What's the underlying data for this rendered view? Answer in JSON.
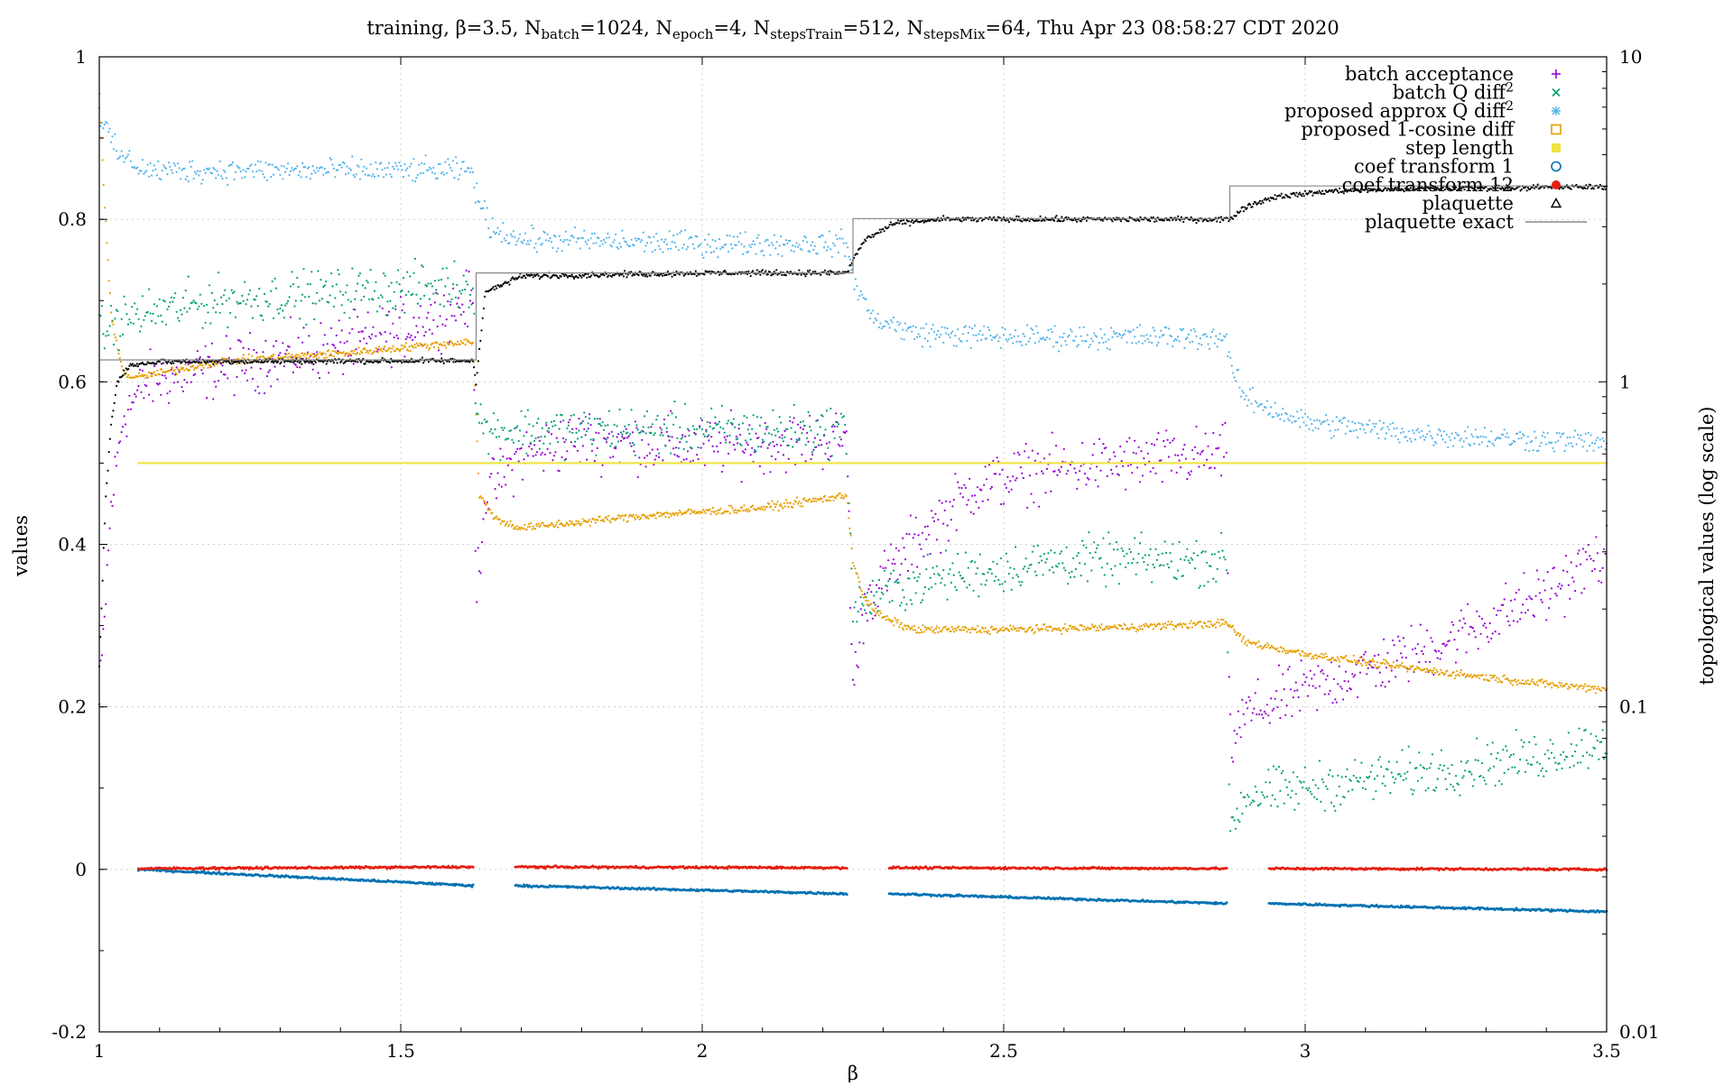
{
  "chart_data": {
    "type": "scatter",
    "title": {
      "segments": [
        {
          "t": "training, β=3.5, N"
        },
        {
          "t": "batch",
          "sub": true
        },
        {
          "t": "=1024, N"
        },
        {
          "t": "epoch",
          "sub": true
        },
        {
          "t": "=4, N"
        },
        {
          "t": "stepsTrain",
          "sub": true
        },
        {
          "t": "=512, N"
        },
        {
          "t": "stepsMix",
          "sub": true
        },
        {
          "t": "=64, Thu Apr 23 08:58:27 CDT 2020"
        }
      ]
    },
    "xlabel": "β",
    "ylabel": "values",
    "y2label": "topological values (log scale)",
    "xlim": [
      1,
      3.5
    ],
    "ylim": [
      -0.2,
      1
    ],
    "y2lim": [
      0.01,
      10
    ],
    "y2scale": "log",
    "grid": true,
    "legend_position": "top-right",
    "x_ticks": [
      "1",
      "1.5",
      "2",
      "2.5",
      "3",
      "3.5"
    ],
    "y_ticks": [
      "-0.2",
      "0",
      "0.2",
      "0.4",
      "0.6",
      "0.8",
      "1"
    ],
    "y2_ticks": [
      "0.01",
      "0.1",
      "1",
      "10"
    ],
    "series": [
      {
        "name": "batch acceptance",
        "sup": "",
        "marker": "plus",
        "color": "#9400d3",
        "axis": "y",
        "spread": 0.022,
        "points": [
          [
            1.0,
            0.2
          ],
          [
            1.02,
            0.45
          ],
          [
            1.04,
            0.56
          ],
          [
            1.08,
            0.6
          ],
          [
            1.15,
            0.61
          ],
          [
            1.3,
            0.63
          ],
          [
            1.45,
            0.65
          ],
          [
            1.62,
            0.7
          ],
          [
            1.625,
            0.34
          ],
          [
            1.64,
            0.46
          ],
          [
            1.7,
            0.51
          ],
          [
            1.8,
            0.53
          ],
          [
            2.0,
            0.52
          ],
          [
            2.24,
            0.53
          ],
          [
            2.25,
            0.22
          ],
          [
            2.27,
            0.33
          ],
          [
            2.35,
            0.4
          ],
          [
            2.45,
            0.47
          ],
          [
            2.55,
            0.49
          ],
          [
            2.7,
            0.5
          ],
          [
            2.87,
            0.51
          ],
          [
            2.875,
            0.15
          ],
          [
            2.9,
            0.19
          ],
          [
            3.0,
            0.22
          ],
          [
            3.2,
            0.27
          ],
          [
            3.4,
            0.34
          ],
          [
            3.5,
            0.39
          ]
        ]
      },
      {
        "name": "batch Q diff",
        "sup": "2",
        "marker": "cross",
        "color": "#009e73",
        "axis": "y",
        "spread": 0.018,
        "points": [
          [
            1.0,
            0.66
          ],
          [
            1.05,
            0.68
          ],
          [
            1.2,
            0.7
          ],
          [
            1.4,
            0.71
          ],
          [
            1.62,
            0.72
          ],
          [
            1.625,
            0.57
          ],
          [
            1.64,
            0.54
          ],
          [
            1.8,
            0.54
          ],
          [
            2.0,
            0.54
          ],
          [
            2.24,
            0.54
          ],
          [
            2.25,
            0.32
          ],
          [
            2.3,
            0.34
          ],
          [
            2.4,
            0.36
          ],
          [
            2.6,
            0.38
          ],
          [
            2.87,
            0.38
          ],
          [
            2.875,
            0.05
          ],
          [
            2.9,
            0.09
          ],
          [
            3.0,
            0.1
          ],
          [
            3.2,
            0.12
          ],
          [
            3.4,
            0.14
          ],
          [
            3.5,
            0.16
          ]
        ]
      },
      {
        "name": "proposed approx Q diff",
        "sup": "2",
        "marker": "star",
        "color": "#56b4e9",
        "axis": "y",
        "spread": 0.009,
        "points": [
          [
            1.0,
            0.93
          ],
          [
            1.03,
            0.88
          ],
          [
            1.08,
            0.86
          ],
          [
            1.3,
            0.86
          ],
          [
            1.62,
            0.86
          ],
          [
            1.625,
            0.83
          ],
          [
            1.65,
            0.79
          ],
          [
            1.7,
            0.775
          ],
          [
            2.0,
            0.77
          ],
          [
            2.24,
            0.77
          ],
          [
            2.25,
            0.73
          ],
          [
            2.28,
            0.68
          ],
          [
            2.35,
            0.66
          ],
          [
            2.5,
            0.655
          ],
          [
            2.87,
            0.655
          ],
          [
            2.875,
            0.62
          ],
          [
            2.9,
            0.58
          ],
          [
            3.0,
            0.55
          ],
          [
            3.2,
            0.535
          ],
          [
            3.5,
            0.525
          ]
        ]
      },
      {
        "name": "proposed 1-cosine diff",
        "sup": "",
        "marker": "square",
        "color": "#e69f00",
        "axis": "y",
        "spread": 0.003,
        "points": [
          [
            1.0,
            0.95
          ],
          [
            1.01,
            0.8
          ],
          [
            1.02,
            0.68
          ],
          [
            1.04,
            0.61
          ],
          [
            1.06,
            0.605
          ],
          [
            1.2,
            0.625
          ],
          [
            1.4,
            0.635
          ],
          [
            1.62,
            0.65
          ],
          [
            1.625,
            0.56
          ],
          [
            1.63,
            0.46
          ],
          [
            1.66,
            0.43
          ],
          [
            1.7,
            0.42
          ],
          [
            1.9,
            0.435
          ],
          [
            2.1,
            0.445
          ],
          [
            2.24,
            0.46
          ],
          [
            2.25,
            0.38
          ],
          [
            2.27,
            0.33
          ],
          [
            2.3,
            0.31
          ],
          [
            2.35,
            0.295
          ],
          [
            2.5,
            0.295
          ],
          [
            2.7,
            0.298
          ],
          [
            2.87,
            0.303
          ],
          [
            2.875,
            0.3
          ],
          [
            2.9,
            0.28
          ],
          [
            3.0,
            0.265
          ],
          [
            3.2,
            0.245
          ],
          [
            3.4,
            0.228
          ],
          [
            3.5,
            0.222
          ]
        ]
      },
      {
        "name": "step length",
        "sup": "",
        "marker": "filled-square",
        "color": "#f0e442",
        "axis": "y",
        "spread": 0,
        "points": [
          [
            1.065,
            0.5
          ],
          [
            3.5,
            0.5
          ]
        ]
      },
      {
        "name": "coef transform 1",
        "sup": "",
        "marker": "circle",
        "color": "#0072b2",
        "axis": "y",
        "spread": 0.0008,
        "points": [
          [
            1.065,
            0.0
          ],
          [
            1.62,
            -0.02
          ],
          [
            null,
            null
          ],
          [
            1.69,
            -0.02
          ],
          [
            2.24,
            -0.03
          ],
          [
            null,
            null
          ],
          [
            2.31,
            -0.03
          ],
          [
            2.87,
            -0.042
          ],
          [
            null,
            null
          ],
          [
            2.94,
            -0.042
          ],
          [
            3.5,
            -0.052
          ]
        ]
      },
      {
        "name": "coef transform 12",
        "sup": "",
        "marker": "filled-circle",
        "color": "#e51e10",
        "axis": "y",
        "spread": 0.0008,
        "points": [
          [
            1.065,
            0.001
          ],
          [
            1.62,
            0.003
          ],
          [
            null,
            null
          ],
          [
            1.69,
            0.003
          ],
          [
            2.24,
            0.002
          ],
          [
            null,
            null
          ],
          [
            2.31,
            0.002
          ],
          [
            2.87,
            0.001
          ],
          [
            null,
            null
          ],
          [
            2.94,
            0.001
          ],
          [
            3.5,
            0.0
          ]
        ]
      },
      {
        "name": "plaquette",
        "sup": "",
        "marker": "triangle",
        "color": "#000000",
        "axis": "y",
        "spread": 0.002,
        "points": [
          [
            1.0,
            0.25
          ],
          [
            1.01,
            0.45
          ],
          [
            1.02,
            0.55
          ],
          [
            1.03,
            0.6
          ],
          [
            1.05,
            0.62
          ],
          [
            1.1,
            0.625
          ],
          [
            1.62,
            0.626
          ],
          [
            1.625,
            0.6
          ],
          [
            1.64,
            0.71
          ],
          [
            1.7,
            0.73
          ],
          [
            2.0,
            0.734
          ],
          [
            2.24,
            0.734
          ],
          [
            2.25,
            0.75
          ],
          [
            2.27,
            0.775
          ],
          [
            2.32,
            0.795
          ],
          [
            2.4,
            0.8
          ],
          [
            2.87,
            0.8
          ],
          [
            2.875,
            0.8
          ],
          [
            2.9,
            0.815
          ],
          [
            2.95,
            0.828
          ],
          [
            3.05,
            0.835
          ],
          [
            3.2,
            0.838
          ],
          [
            3.5,
            0.84
          ]
        ]
      },
      {
        "name": "plaquette exact",
        "sup": "",
        "marker": "line",
        "color": "#888888",
        "axis": "y",
        "spread": 0,
        "points": [
          [
            1.0,
            0.627
          ],
          [
            1.625,
            0.627
          ],
          [
            1.625,
            0.734
          ],
          [
            2.25,
            0.734
          ],
          [
            2.25,
            0.801
          ],
          [
            2.875,
            0.801
          ],
          [
            2.875,
            0.841
          ],
          [
            3.5,
            0.841
          ]
        ]
      }
    ]
  }
}
